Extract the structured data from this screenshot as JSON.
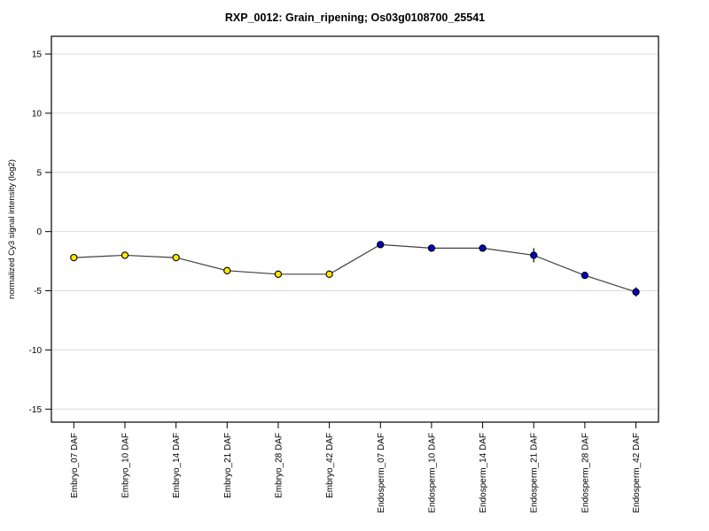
{
  "chart_data": {
    "type": "line",
    "title": "RXP_0012: Grain_ripening; Os03g0108700_25541",
    "ylabel": "normalized Cy3 signal intensity (log2)",
    "xlabel": "",
    "categories": [
      "Embryo_07 DAF",
      "Embryo_10 DAF",
      "Embryo_14 DAF",
      "Embryo_21 DAF",
      "Embryo_28 DAF",
      "Embryo_42 DAF",
      "Endosperm_07 DAF",
      "Endosperm_10 DAF",
      "Endosperm_14 DAF",
      "Endosperm_21 DAF",
      "Endosperm_28 DAF",
      "Endosperm_42 DAF"
    ],
    "values": [
      -2.2,
      -2.0,
      -2.2,
      -3.3,
      -3.6,
      -3.6,
      -1.1,
      -1.4,
      -1.4,
      -2.0,
      -3.7,
      -5.1
    ],
    "errors": [
      0,
      0,
      0,
      0,
      0,
      0,
      0,
      0,
      0,
      0.6,
      0,
      0.4
    ],
    "point_groups": [
      "embryo",
      "embryo",
      "embryo",
      "embryo",
      "embryo",
      "embryo",
      "endosperm",
      "endosperm",
      "endosperm",
      "endosperm",
      "endosperm",
      "endosperm"
    ],
    "group_colors": {
      "embryo": "#FFE800",
      "endosperm": "#0000CD"
    },
    "marker_outline_color": "#000000",
    "line_color": "#404040",
    "grid_color": "#DBDBDB",
    "axis_color": "#000000",
    "yticks": [
      15,
      10,
      5,
      0,
      -5,
      -10,
      -15
    ],
    "ylim": [
      -16.1,
      16.5
    ],
    "grid": true,
    "legend_position": "none"
  }
}
